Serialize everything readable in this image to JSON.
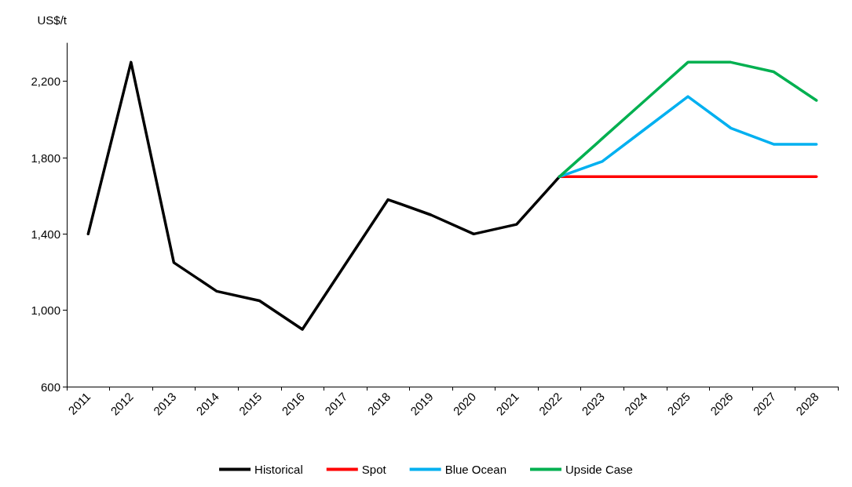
{
  "chart_data": {
    "type": "line",
    "ylabel": "US$/t",
    "categories": [
      "2011",
      "2012",
      "2013",
      "2014",
      "2015",
      "2016",
      "2017",
      "2018",
      "2019",
      "2020",
      "2021",
      "2022",
      "2023",
      "2024",
      "2025",
      "2026",
      "2027",
      "2028"
    ],
    "series": [
      {
        "name": "Historical",
        "color": "#000000",
        "values": [
          1400,
          2300,
          1250,
          1100,
          1050,
          900,
          1240,
          1580,
          1500,
          1400,
          1450,
          1700,
          null,
          null,
          null,
          null,
          null,
          null
        ]
      },
      {
        "name": "Spot",
        "color": "#ff0000",
        "values": [
          null,
          null,
          null,
          null,
          null,
          null,
          null,
          null,
          null,
          null,
          null,
          1700,
          1700,
          1700,
          1700,
          1700,
          1700,
          1700
        ]
      },
      {
        "name": "Blue Ocean",
        "color": "#00b0f0",
        "values": [
          null,
          null,
          null,
          null,
          null,
          null,
          null,
          null,
          null,
          null,
          null,
          1700,
          1780,
          1950,
          2120,
          1955,
          1870,
          1870
        ]
      },
      {
        "name": "Upside Case",
        "color": "#00b050",
        "values": [
          null,
          null,
          null,
          null,
          null,
          null,
          null,
          null,
          null,
          null,
          null,
          1700,
          1900,
          2100,
          2300,
          2300,
          2250,
          2100
        ]
      }
    ],
    "ylim": [
      600,
      2400
    ],
    "yticks": [
      600,
      {
        "value": 1000,
        "label": "1,000"
      },
      {
        "value": 1400,
        "label": "1,400"
      },
      {
        "value": 1800,
        "label": "1,800"
      },
      {
        "value": 2200,
        "label": "2,200"
      }
    ],
    "grid": false,
    "legend": "bottom",
    "marker": "none",
    "line_style": "solid"
  }
}
